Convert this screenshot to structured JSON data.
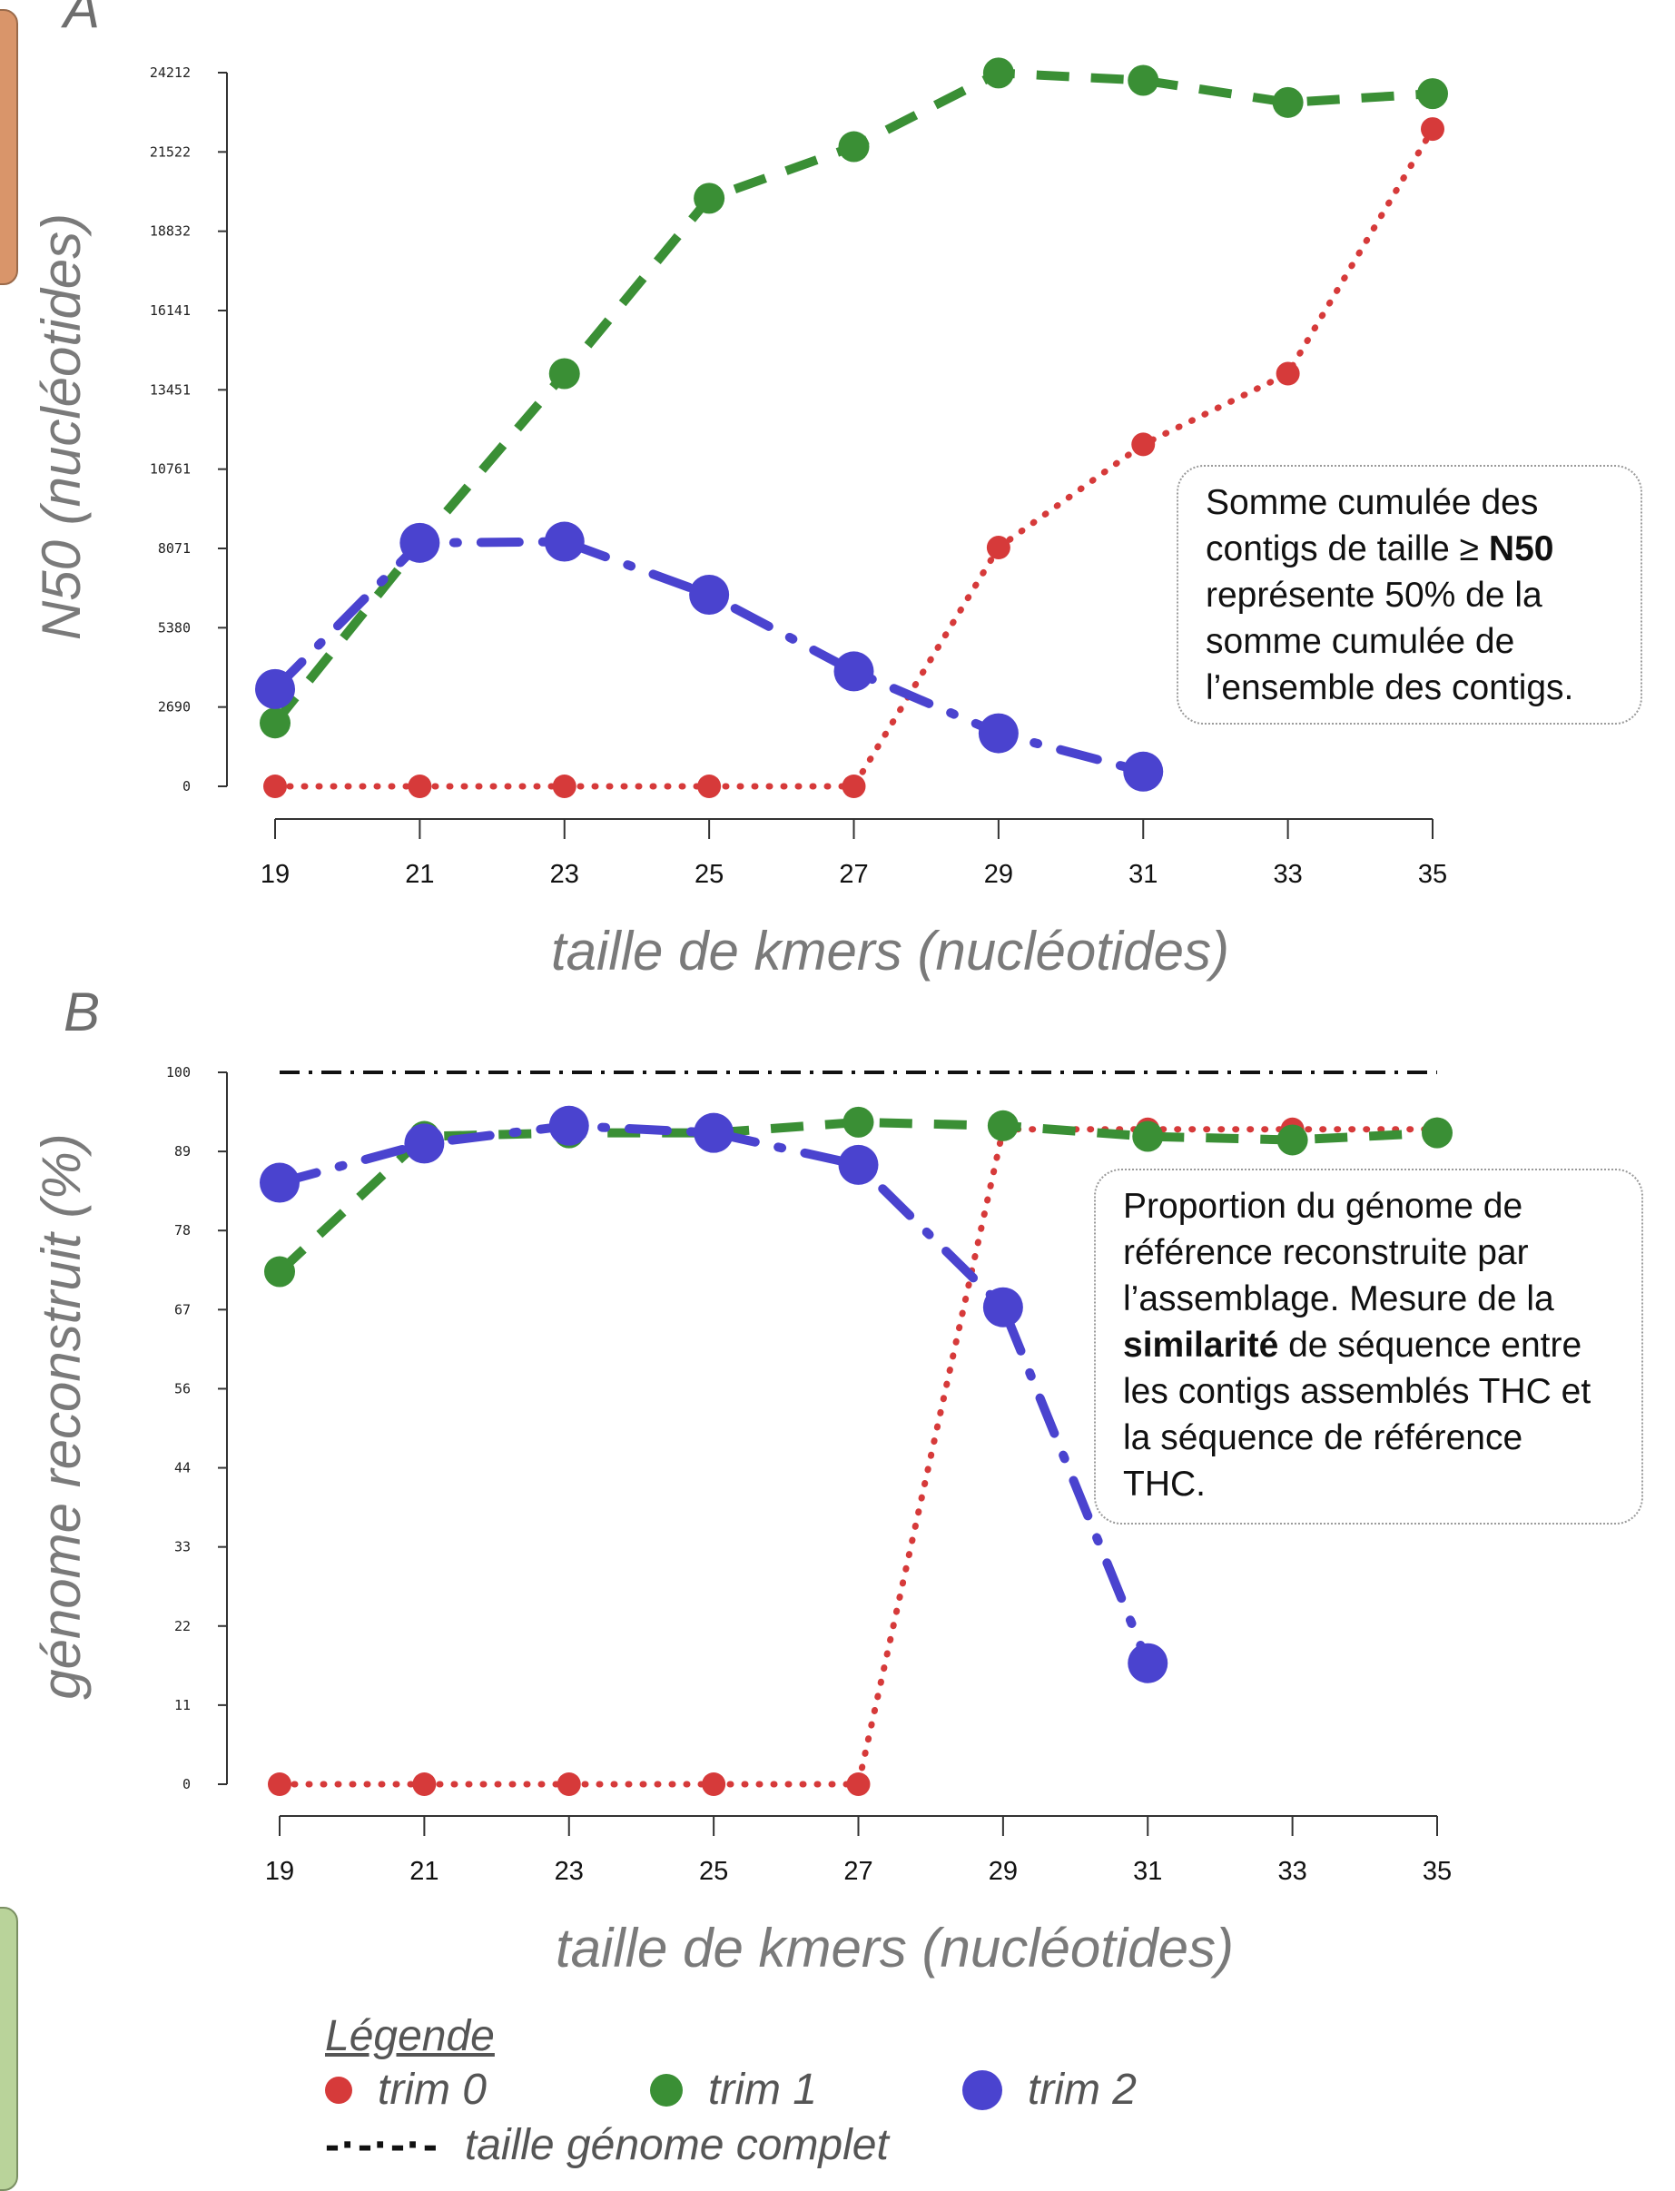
{
  "chart_data": [
    {
      "panel": "A",
      "type": "line",
      "ylabel": "N50 (nucléotides)",
      "xlabel": "taille de kmers (nucléotides)",
      "x": [
        19,
        21,
        23,
        25,
        27,
        29,
        31,
        33,
        35
      ],
      "ylim": [
        0,
        24212
      ],
      "yticks": [
        "0",
        "2690",
        "5380",
        "8071",
        "10761",
        "13451",
        "16141",
        "18832",
        "21522",
        "24212"
      ],
      "series": [
        {
          "name": "trim 0",
          "color": "#d63a3a",
          "style": "dotted",
          "values": [
            0,
            0,
            0,
            0,
            0,
            8100,
            11600,
            14000,
            22300
          ]
        },
        {
          "name": "trim 1",
          "color": "#3a8f35",
          "style": "dashed",
          "values": [
            2150,
            8260,
            14000,
            19950,
            21700,
            24200,
            23950,
            23200,
            23500
          ]
        },
        {
          "name": "trim 2",
          "color": "#4a43cf",
          "style": "dashdot",
          "values": [
            3300,
            8260,
            8300,
            6500,
            3900,
            1800,
            500,
            null,
            null
          ]
        }
      ],
      "annotation": {
        "pre": "Somme cumulée des contigs de taille ≥ ",
        "bold": "N50",
        "post": " représente 50% de la somme cumulée de l’ensemble des contigs."
      }
    },
    {
      "panel": "B",
      "type": "line",
      "ylabel": "génome reconstruit (%)",
      "xlabel": "taille de kmers (nucléotides)",
      "x": [
        19,
        21,
        23,
        25,
        27,
        29,
        31,
        33,
        35
      ],
      "ylim": [
        0,
        100
      ],
      "yticks": [
        "0",
        "11",
        "22",
        "33",
        "44",
        "56",
        "67",
        "78",
        "89",
        "100"
      ],
      "reference_line": {
        "name": "taille génome complet",
        "value": 100
      },
      "series": [
        {
          "name": "trim 0",
          "color": "#d63a3a",
          "style": "dotted",
          "values": [
            0,
            0,
            0,
            0,
            0,
            92,
            92,
            92,
            92
          ]
        },
        {
          "name": "trim 1",
          "color": "#3a8f35",
          "style": "dashed",
          "values": [
            72,
            91,
            91.5,
            91.5,
            93,
            92.5,
            91,
            90.5,
            91.5
          ]
        },
        {
          "name": "trim 2",
          "color": "#4a43cf",
          "style": "dashdot",
          "values": [
            84.5,
            90,
            92.5,
            91.5,
            87,
            67,
            17,
            null,
            null
          ]
        }
      ],
      "annotation": {
        "pre": "Proportion du génome de référence reconstruite par l’assemblage. Mesure de la ",
        "bold": "similarité",
        "post": " de séquence entre les contigs assemblés THC et la séquence de référence THC."
      }
    }
  ],
  "legend": {
    "title": "Légende",
    "items": [
      {
        "label": "trim 0",
        "color": "#d63a3a"
      },
      {
        "label": "trim 1",
        "color": "#3a8f35"
      },
      {
        "label": "trim 2",
        "color": "#4a43cf"
      }
    ],
    "reference_symbol": "-·-·-·-",
    "reference_label": "taille génome complet"
  }
}
